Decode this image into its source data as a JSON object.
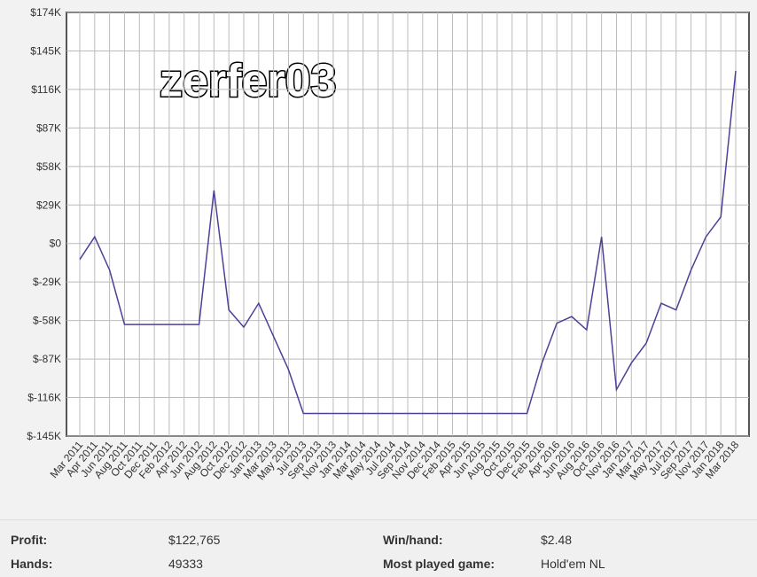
{
  "chart_data": {
    "type": "line",
    "title": "zerfer03",
    "categories": [
      "Mar 2011",
      "Apr 2011",
      "Jun 2011",
      "Aug 2011",
      "Oct 2011",
      "Dec 2011",
      "Feb 2012",
      "Apr 2012",
      "Jun 2012",
      "Aug 2012",
      "Oct 2012",
      "Dec 2012",
      "Jan 2013",
      "Mar 2013",
      "May 2013",
      "Jul 2013",
      "Sep 2013",
      "Nov 2013",
      "Jan 2014",
      "Mar 2014",
      "May 2014",
      "Jul 2014",
      "Sep 2014",
      "Nov 2014",
      "Dec 2014",
      "Feb 2015",
      "Apr 2015",
      "Jun 2015",
      "Aug 2015",
      "Oct 2015",
      "Dec 2015",
      "Feb 2016",
      "Apr 2016",
      "Jun 2016",
      "Aug 2016",
      "Oct 2016",
      "Nov 2016",
      "Jan 2017",
      "Mar 2017",
      "May 2017",
      "Jul 2017",
      "Sep 2017",
      "Nov 2017",
      "Jan 2018",
      "Mar 2018"
    ],
    "series": [
      {
        "color": "#4b4296",
        "values": [
          -12000,
          5000,
          -20000,
          -61000,
          -61000,
          -61000,
          -61000,
          -61000,
          -61000,
          40000,
          -50000,
          -63000,
          -45000,
          -70000,
          -95000,
          -128000,
          -128000,
          -128000,
          -128000,
          -128000,
          -128000,
          -128000,
          -128000,
          -128000,
          -128000,
          -128000,
          -128000,
          -128000,
          -128000,
          -128000,
          -128000,
          -90000,
          -60000,
          -55000,
          -65000,
          5000,
          -110000,
          -90000,
          -75000,
          -45000,
          -50000,
          -20000,
          5000,
          20000,
          130000
        ]
      }
    ],
    "ylim": [
      -145000,
      174000
    ],
    "yticks": [
      {
        "value": -145000,
        "label": "$-145K"
      },
      {
        "value": -116000,
        "label": "$-116K"
      },
      {
        "value": -87000,
        "label": "$-87K"
      },
      {
        "value": -58000,
        "label": "$-58K"
      },
      {
        "value": -29000,
        "label": "$-29K"
      },
      {
        "value": 0,
        "label": "$0"
      },
      {
        "value": 29000,
        "label": "$29K"
      },
      {
        "value": 58000,
        "label": "$58K"
      },
      {
        "value": 87000,
        "label": "$87K"
      },
      {
        "value": 116000,
        "label": "$116K"
      },
      {
        "value": 145000,
        "label": "$145K"
      },
      {
        "value": 174000,
        "label": "$174K"
      }
    ],
    "grid": true
  },
  "stats": {
    "profit_label": "Profit:",
    "profit": "$122,765",
    "hands_label": "Hands:",
    "hands": "49333",
    "win_label": "Win/hand:",
    "win": "$2.48",
    "game_label": "Most played game:",
    "game": "Hold'em NL"
  }
}
